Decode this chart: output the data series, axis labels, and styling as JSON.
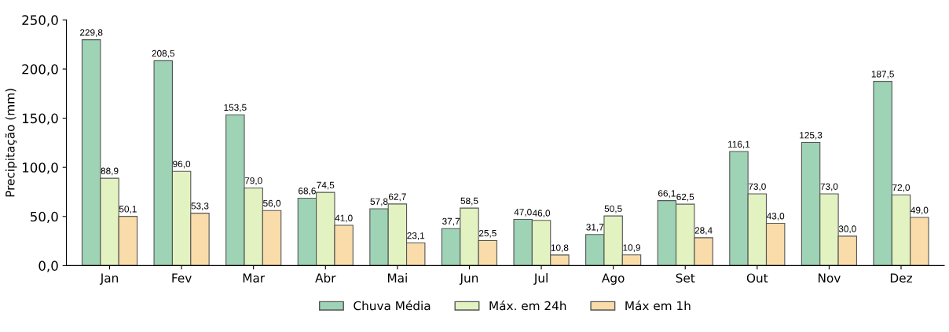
{
  "chart_data": {
    "type": "bar",
    "ylabel": "Precipitação (mm)",
    "categories": [
      "Jan",
      "Fev",
      "Mar",
      "Abr",
      "Mai",
      "Jun",
      "Jul",
      "Ago",
      "Set",
      "Out",
      "Nov",
      "Dez"
    ],
    "series": [
      {
        "name": "Chuva Média",
        "color": "#9ed3b5",
        "values": [
          229.8,
          208.5,
          153.5,
          68.6,
          57.8,
          37.7,
          47.0,
          31.7,
          66.1,
          116.1,
          125.3,
          187.5
        ],
        "value_labels": [
          "229,8",
          "208,5",
          "153,5",
          "68,6",
          "57,8",
          "37,7",
          "47,0",
          "31,7",
          "66,1",
          "116,1",
          "125,3",
          "187,5"
        ]
      },
      {
        "name": "Máx. em 24h",
        "color": "#e3f2c1",
        "values": [
          88.9,
          96.0,
          79.0,
          74.5,
          62.7,
          58.5,
          46.0,
          50.5,
          62.5,
          73.0,
          73.0,
          72.0
        ],
        "value_labels": [
          "88,9",
          "96,0",
          "79,0",
          "74,5",
          "62,7",
          "58,5",
          "46,0",
          "50,5",
          "62,5",
          "73,0",
          "73,0",
          "72,0"
        ]
      },
      {
        "name": "Máx em 1h",
        "color": "#f9dcaa",
        "values": [
          50.1,
          53.3,
          56.0,
          41.0,
          23.1,
          25.5,
          10.8,
          10.9,
          28.4,
          43.0,
          30.0,
          49.0
        ],
        "value_labels": [
          "50,1",
          "53,3",
          "56,0",
          "41,0",
          "23,1",
          "25,5",
          "10,8",
          "10,9",
          "28,4",
          "43,0",
          "30,0",
          "49,0"
        ]
      }
    ],
    "ylim": [
      0,
      250
    ],
    "yticks": [
      {
        "value": 0,
        "label": "0,0"
      },
      {
        "value": 50,
        "label": "50,0"
      },
      {
        "value": 100,
        "label": "100,0"
      },
      {
        "value": 150,
        "label": "150,0"
      },
      {
        "value": 200,
        "label": "200,0"
      },
      {
        "value": 250,
        "label": "250,0"
      }
    ],
    "grid": false,
    "legend": "bottom"
  }
}
